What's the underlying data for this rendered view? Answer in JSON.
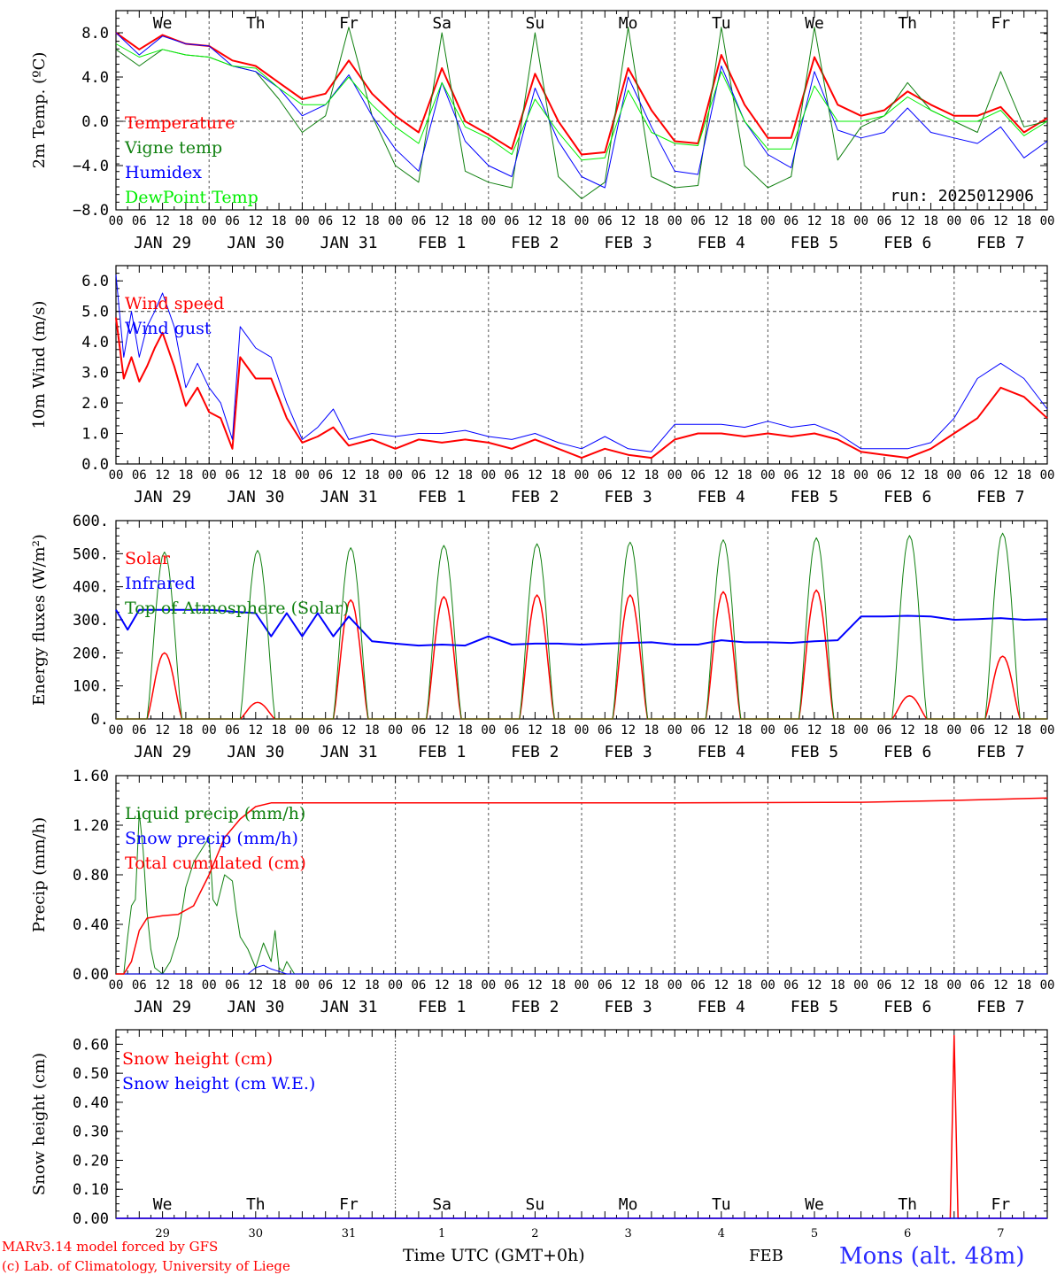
{
  "colors": {
    "red": "#ff0000",
    "green": "#108010",
    "blue": "#0000ff",
    "lime": "#00ee00",
    "frame": "#000000",
    "grid": "#555555"
  },
  "day_letters": [
    "We",
    "Th",
    "Fr",
    "Sa",
    "Su",
    "Mo",
    "Tu",
    "We",
    "Th",
    "Fr"
  ],
  "day_colors": [
    "#000000",
    "#000000",
    "#000000",
    "#ff0000",
    "#ff0000",
    "#000000",
    "#000000",
    "#000000",
    "#000000",
    "#000000"
  ],
  "date_labels": [
    "JAN 29",
    "JAN 30",
    "JAN 31",
    "FEB  1",
    "FEB  2",
    "FEB  3",
    "FEB  4",
    "FEB  5",
    "FEB  6",
    "FEB  7"
  ],
  "hour_ticks": [
    "00",
    "06",
    "12",
    "18"
  ],
  "snow_day_numbers": [
    "29",
    "30",
    "31",
    "1",
    "2",
    "3",
    "4",
    "5",
    "6",
    "7"
  ],
  "footer": {
    "model": "MARv3.14 model forced by GFS",
    "lab": "(c) Lab. of Climatology, University of Liege",
    "time_axis": "Time UTC (GMT+0h)",
    "month": "FEB",
    "station": "Mons (alt. 48m)"
  },
  "chart_data": [
    {
      "type": "line",
      "ylabel": "2m Temp. (ºC)",
      "ylim": [
        -8,
        10
      ],
      "yticks": [
        8.0,
        4.0,
        0.0,
        -4.0,
        -8.0
      ],
      "ytick_labels": [
        "8.0",
        "4.0",
        "0.0",
        "−4.0",
        "−8.0"
      ],
      "ref_line": 0,
      "annotation": "run: 2025012906",
      "x_unit": "hours since Jan 29 00 UTC",
      "series": [
        {
          "name": "Temperature",
          "color": "#ff0000",
          "width": 2,
          "x": [
            0,
            6,
            12,
            18,
            24,
            30,
            36,
            42,
            48,
            54,
            60,
            66,
            72,
            78,
            84,
            90,
            96,
            102,
            108,
            114,
            120,
            126,
            132,
            138,
            144,
            150,
            156,
            162,
            168,
            174,
            180,
            186,
            192,
            198,
            204,
            210,
            216,
            222,
            228,
            234,
            240
          ],
          "y": [
            8.0,
            6.5,
            7.8,
            7.0,
            6.8,
            5.5,
            5.0,
            3.5,
            2.0,
            2.5,
            5.5,
            2.5,
            0.5,
            -1.0,
            4.8,
            0.0,
            -1.2,
            -2.5,
            4.3,
            0.0,
            -3.0,
            -2.8,
            4.8,
            1.0,
            -1.8,
            -2.0,
            6.0,
            1.5,
            -1.5,
            -1.5,
            5.8,
            1.5,
            0.5,
            1.0,
            2.7,
            1.5,
            0.5,
            0.5,
            1.3,
            -1.0,
            0.3
          ]
        },
        {
          "name": "Vigne temp",
          "color": "#108010",
          "width": 1,
          "x": [
            0,
            6,
            12,
            18,
            24,
            30,
            36,
            42,
            48,
            54,
            60,
            66,
            72,
            78,
            84,
            90,
            96,
            102,
            108,
            114,
            120,
            126,
            132,
            138,
            144,
            150,
            156,
            162,
            168,
            174,
            180,
            186,
            192,
            198,
            204,
            210,
            216,
            222,
            228,
            234,
            240
          ],
          "y": [
            6.5,
            5.0,
            6.5,
            6.0,
            5.8,
            5.0,
            4.5,
            2.0,
            -1.0,
            0.5,
            8.5,
            0.5,
            -4.0,
            -5.5,
            8.0,
            -4.5,
            -5.5,
            -6.0,
            8.0,
            -5.0,
            -7.0,
            -5.5,
            8.5,
            -5.0,
            -6.0,
            -5.8,
            8.5,
            -4.0,
            -6.0,
            -5.0,
            8.5,
            -3.5,
            -0.5,
            0.5,
            3.5,
            1.0,
            0.0,
            -1.0,
            4.5,
            -0.5,
            0.0
          ]
        },
        {
          "name": "Humidex",
          "color": "#0000ff",
          "width": 1,
          "x": [
            0,
            6,
            12,
            18,
            24,
            30,
            36,
            42,
            48,
            54,
            60,
            66,
            72,
            78,
            84,
            90,
            96,
            102,
            108,
            114,
            120,
            126,
            132,
            138,
            144,
            150,
            156,
            162,
            168,
            174,
            180,
            186,
            192,
            198,
            204,
            210,
            216,
            222,
            228,
            234,
            240
          ],
          "y": [
            8.0,
            6.0,
            7.7,
            7.0,
            6.8,
            5.0,
            4.5,
            3.0,
            0.5,
            1.5,
            4.2,
            0.5,
            -2.5,
            -4.5,
            3.5,
            -1.8,
            -4.0,
            -5.0,
            3.0,
            -1.8,
            -5.0,
            -6.0,
            4.0,
            -0.5,
            -4.5,
            -4.8,
            5.0,
            0.0,
            -3.0,
            -4.2,
            4.5,
            -0.8,
            -1.5,
            -1.0,
            1.2,
            -1.0,
            -1.5,
            -2.0,
            -0.5,
            -3.3,
            -1.8
          ]
        },
        {
          "name": "DewPoint Temp",
          "color": "#00ee00",
          "width": 1,
          "x": [
            0,
            6,
            12,
            18,
            24,
            30,
            36,
            42,
            48,
            54,
            60,
            66,
            72,
            78,
            84,
            90,
            96,
            102,
            108,
            114,
            120,
            126,
            132,
            138,
            144,
            150,
            156,
            162,
            168,
            174,
            180,
            186,
            192,
            198,
            204,
            210,
            216,
            222,
            228,
            234,
            240
          ],
          "y": [
            7.0,
            5.8,
            6.5,
            6.0,
            5.8,
            5.0,
            4.8,
            3.0,
            1.5,
            1.5,
            4.0,
            1.5,
            -0.5,
            -2.0,
            3.5,
            -0.5,
            -1.5,
            -3.0,
            2.0,
            -1.0,
            -3.5,
            -3.3,
            2.8,
            -1.0,
            -2.0,
            -2.2,
            4.5,
            0.0,
            -2.5,
            -2.5,
            3.2,
            0.0,
            0.0,
            0.5,
            2.2,
            1.0,
            0.0,
            0.0,
            1.0,
            -1.3,
            0.0
          ]
        }
      ]
    },
    {
      "type": "line",
      "ylabel": "10m Wind (m/s)",
      "ylim": [
        0,
        6.5
      ],
      "yticks": [
        0.0,
        1.0,
        2.0,
        3.0,
        4.0,
        5.0,
        6.0
      ],
      "ytick_labels": [
        "0.0",
        "1.0",
        "2.0",
        "3.0",
        "4.0",
        "5.0",
        "6.0"
      ],
      "ref_line": 5,
      "x_unit": "hours since Jan 29 00 UTC",
      "series": [
        {
          "name": "Wind speed",
          "color": "#ff0000",
          "width": 2,
          "x": [
            0,
            2,
            4,
            6,
            8,
            10,
            12,
            15,
            18,
            21,
            24,
            27,
            30,
            32,
            36,
            40,
            44,
            48,
            52,
            56,
            60,
            66,
            72,
            78,
            84,
            90,
            96,
            102,
            108,
            114,
            120,
            126,
            132,
            138,
            144,
            150,
            156,
            162,
            168,
            174,
            180,
            186,
            192,
            198,
            204,
            210,
            216,
            222,
            228,
            234,
            240
          ],
          "y": [
            4.8,
            2.8,
            3.5,
            2.7,
            3.2,
            3.8,
            4.3,
            3.2,
            1.9,
            2.5,
            1.7,
            1.5,
            0.5,
            3.5,
            2.8,
            2.8,
            1.5,
            0.7,
            0.9,
            1.2,
            0.6,
            0.8,
            0.5,
            0.8,
            0.7,
            0.8,
            0.7,
            0.5,
            0.8,
            0.5,
            0.2,
            0.5,
            0.3,
            0.2,
            0.8,
            1.0,
            1.0,
            0.9,
            1.0,
            0.9,
            1.0,
            0.8,
            0.4,
            0.3,
            0.2,
            0.5,
            1.0,
            1.5,
            2.5,
            2.2,
            1.5
          ]
        },
        {
          "name": "Wind gust",
          "color": "#0000ff",
          "width": 1,
          "x": [
            0,
            2,
            4,
            6,
            8,
            10,
            12,
            15,
            18,
            21,
            24,
            27,
            30,
            32,
            36,
            40,
            44,
            48,
            52,
            56,
            60,
            66,
            72,
            78,
            84,
            90,
            96,
            102,
            108,
            114,
            120,
            126,
            132,
            138,
            144,
            150,
            156,
            162,
            168,
            174,
            180,
            186,
            192,
            198,
            204,
            210,
            216,
            222,
            228,
            234,
            240
          ],
          "y": [
            6.2,
            3.5,
            5.0,
            3.5,
            4.5,
            5.0,
            5.6,
            4.5,
            2.5,
            3.3,
            2.5,
            2.0,
            0.8,
            4.5,
            3.8,
            3.5,
            2.0,
            0.8,
            1.2,
            1.8,
            0.8,
            1.0,
            0.9,
            1.0,
            1.0,
            1.1,
            0.9,
            0.8,
            1.0,
            0.7,
            0.5,
            0.9,
            0.5,
            0.4,
            1.3,
            1.3,
            1.3,
            1.2,
            1.4,
            1.2,
            1.3,
            1.0,
            0.5,
            0.5,
            0.5,
            0.7,
            1.5,
            2.8,
            3.3,
            2.8,
            1.8
          ]
        }
      ]
    },
    {
      "type": "line",
      "ylabel": "Energy fluxes (W/m²)",
      "ylim": [
        0,
        600
      ],
      "yticks": [
        0,
        100,
        200,
        300,
        400,
        500,
        600
      ],
      "ytick_labels": [
        "0.",
        "100.",
        "200.",
        "300.",
        "400.",
        "500.",
        "600."
      ],
      "x_unit": "hours since Jan 29 00 UTC",
      "series": [
        {
          "name": "Solar",
          "color": "#ff0000",
          "width": 1.5,
          "diurnal_peak_hour": 12.5,
          "diurnal_half_width": 4.5,
          "daily_peaks": [
            200,
            50,
            360,
            370,
            375,
            375,
            385,
            390,
            70,
            190
          ]
        },
        {
          "name": "Infrared",
          "color": "#0000ff",
          "width": 2,
          "x": [
            0,
            3,
            6,
            12,
            18,
            24,
            30,
            36,
            40,
            44,
            48,
            52,
            56,
            60,
            66,
            72,
            78,
            84,
            90,
            96,
            102,
            108,
            114,
            120,
            126,
            132,
            138,
            144,
            150,
            156,
            162,
            168,
            174,
            180,
            186,
            192,
            198,
            204,
            210,
            216,
            222,
            228,
            234,
            240
          ],
          "y": [
            330,
            270,
            330,
            330,
            330,
            330,
            325,
            320,
            250,
            320,
            250,
            320,
            250,
            310,
            235,
            228,
            222,
            225,
            222,
            250,
            225,
            228,
            228,
            225,
            228,
            230,
            232,
            225,
            225,
            238,
            232,
            232,
            230,
            235,
            238,
            310,
            310,
            312,
            310,
            300,
            302,
            305,
            300,
            302
          ]
        },
        {
          "name": "Top of Atmosphere (Solar)",
          "color": "#108010",
          "width": 1,
          "diurnal_peak_hour": 12.5,
          "diurnal_half_width": 4.5,
          "daily_peaks": [
            505,
            510,
            518,
            525,
            530,
            535,
            542,
            548,
            555,
            562
          ]
        }
      ]
    },
    {
      "type": "line",
      "ylabel": "Precip (mm/h)",
      "ylim": [
        0,
        1.6
      ],
      "yticks": [
        0.0,
        0.4,
        0.8,
        1.2,
        1.6
      ],
      "ytick_labels": [
        "0.00",
        "0.40",
        "0.80",
        "1.20",
        "1.60"
      ],
      "x_unit": "hours since Jan 29 00 UTC",
      "series": [
        {
          "name": "Liquid precip (mm/h)",
          "color": "#108010",
          "width": 1,
          "x": [
            0,
            2,
            3,
            4,
            5,
            6,
            7,
            8,
            9,
            10,
            12,
            14,
            16,
            18,
            20,
            22,
            24,
            25,
            26,
            28,
            30,
            31,
            32,
            34,
            36,
            38,
            40,
            41,
            42,
            43,
            44,
            45,
            46,
            48,
            240
          ],
          "y": [
            0,
            0,
            0.3,
            0.55,
            0.6,
            1.3,
            1.0,
            0.5,
            0.2,
            0.05,
            0,
            0.1,
            0.3,
            0.7,
            0.9,
            1.0,
            1.1,
            0.6,
            0.55,
            0.8,
            0.75,
            0.5,
            0.3,
            0.2,
            0.05,
            0.25,
            0.1,
            0.35,
            0.05,
            0.02,
            0.1,
            0.05,
            0,
            0,
            0
          ]
        },
        {
          "name": "Snow precip (mm/h)",
          "color": "#0000ff",
          "width": 1,
          "x": [
            0,
            34,
            36,
            38,
            40,
            42,
            44,
            240
          ],
          "y": [
            0,
            0,
            0.05,
            0.07,
            0.04,
            0.02,
            0,
            0
          ]
        },
        {
          "name": "Total cumulated (cm)",
          "color": "#ff0000",
          "width": 1.5,
          "x": [
            0,
            2,
            4,
            6,
            8,
            12,
            16,
            20,
            24,
            28,
            32,
            36,
            40,
            44,
            48,
            96,
            144,
            192,
            216,
            240
          ],
          "y": [
            0,
            0,
            0.1,
            0.35,
            0.45,
            0.47,
            0.48,
            0.55,
            0.8,
            1.1,
            1.25,
            1.35,
            1.38,
            1.38,
            1.38,
            1.38,
            1.38,
            1.385,
            1.4,
            1.42
          ]
        }
      ]
    },
    {
      "type": "line",
      "ylabel": "Snow height (cm)",
      "ylim": [
        0,
        0.65
      ],
      "yticks": [
        0.0,
        0.1,
        0.2,
        0.3,
        0.4,
        0.5,
        0.6
      ],
      "ytick_labels": [
        "0.00",
        "0.10",
        "0.20",
        "0.30",
        "0.40",
        "0.50",
        "0.60"
      ],
      "x_unit": "hours since Jan 29 00 UTC",
      "series": [
        {
          "name": "Snow height (cm)",
          "color": "#ff0000",
          "width": 1.5,
          "x": [
            0,
            215,
            216,
            217,
            240
          ],
          "y": [
            0,
            0,
            0.63,
            0,
            0
          ]
        },
        {
          "name": "Snow height (cm W.E.)",
          "color": "#0000ff",
          "width": 1.5,
          "x": [
            0,
            240
          ],
          "y": [
            0,
            0
          ]
        }
      ]
    }
  ]
}
